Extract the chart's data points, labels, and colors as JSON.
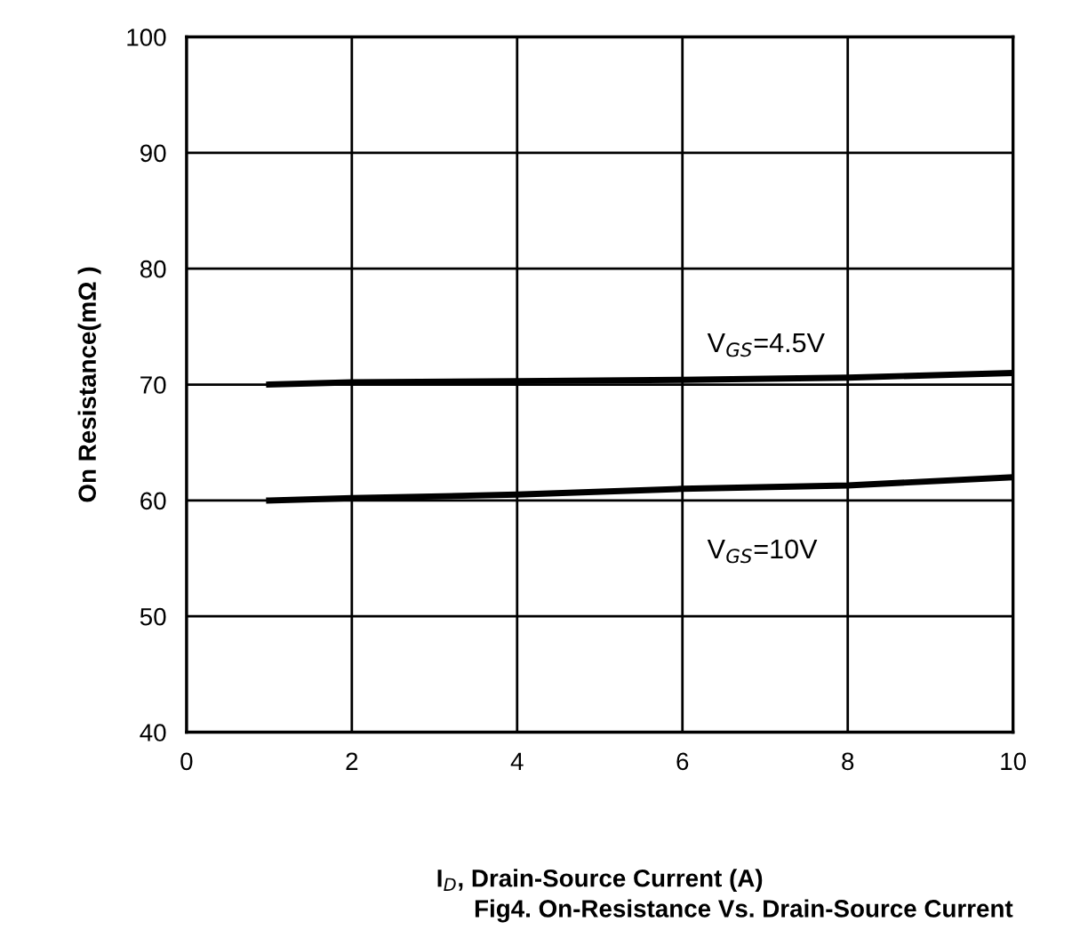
{
  "chart_data": {
    "type": "line",
    "xlabel": "I$_{D}$, Drain-Source Current (A)",
    "ylabel": "On Resistance(mΩ )",
    "x": [
      1,
      2,
      4,
      6,
      8,
      10
    ],
    "series": [
      {
        "name": "V$_{GS}$=4.5V",
        "color": "#000000",
        "values": [
          70,
          70.2,
          70.3,
          70.4,
          70.6,
          71
        ]
      },
      {
        "name": "V$_{GS}$=10V",
        "color": "#000000",
        "values": [
          60,
          60.2,
          60.5,
          61,
          61.3,
          62
        ]
      }
    ],
    "xlim": [
      0,
      10
    ],
    "xticks": [
      0,
      2,
      4,
      6,
      8,
      10
    ],
    "ylim": [
      40,
      100
    ],
    "yticks": [
      40,
      50,
      60,
      70,
      80,
      90,
      100
    ],
    "grid": true,
    "legend": false,
    "marker": "none",
    "line_style": "solid",
    "annotations": [
      "Fig4. On-Resistance Vs. Drain-Source Current"
    ]
  }
}
